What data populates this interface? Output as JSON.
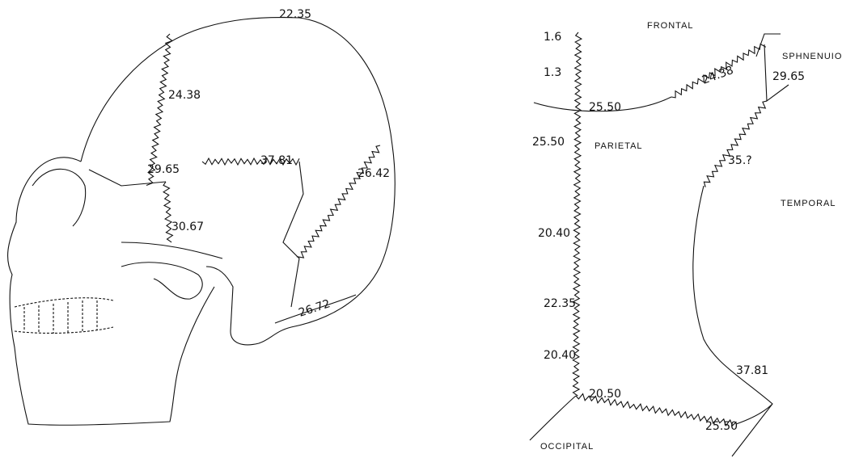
{
  "left_skull": {
    "labels": [
      "22.35",
      "24.38",
      "29.65",
      "37.81",
      "26.42",
      "30.67",
      "26.72"
    ]
  },
  "right_diagram": {
    "bones": [
      "FRONTAL",
      "SPHNENUIOE",
      "PARIETAL",
      "TEMPORAL",
      "OCCIPITAL"
    ],
    "labels": [
      "1.6",
      "1.3",
      "24.38",
      "29.65",
      "25.50",
      "25.50",
      "35.?",
      "20.40",
      "22.35",
      "20.40",
      "37.81",
      "20.50",
      "25.50"
    ]
  }
}
